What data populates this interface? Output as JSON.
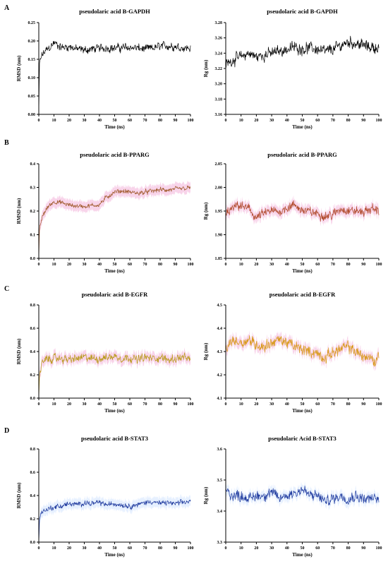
{
  "panels": [
    {
      "letter": "A"
    },
    {
      "letter": "B"
    },
    {
      "letter": "C"
    },
    {
      "letter": "D"
    }
  ],
  "chart_data": [
    {
      "type": "line",
      "panel": "A",
      "title": "pseudolaric acid B-GAPDH",
      "xlabel": "Time (ns)",
      "ylabel": "RMSD (nm)",
      "xlim": [
        0,
        100
      ],
      "ylim": [
        0.0,
        0.25
      ],
      "xticks": [
        "0",
        "10",
        "20",
        "30",
        "40",
        "50",
        "60",
        "70",
        "80",
        "90",
        "100"
      ],
      "yticks": [
        "0.00",
        "0.05",
        "0.10",
        "0.15",
        "0.20",
        "0.25"
      ],
      "grid": false,
      "line_color": "#000000",
      "shade_color": "",
      "series": [
        {
          "x": [
            0,
            0.5,
            2,
            5,
            8,
            10,
            15,
            20,
            25,
            30,
            35,
            40,
            45,
            50,
            55,
            60,
            65,
            70,
            75,
            80,
            85,
            90,
            95,
            100
          ],
          "values": [
            0.0,
            0.14,
            0.16,
            0.175,
            0.185,
            0.195,
            0.182,
            0.185,
            0.178,
            0.175,
            0.178,
            0.18,
            0.182,
            0.18,
            0.182,
            0.183,
            0.18,
            0.178,
            0.18,
            0.185,
            0.187,
            0.185,
            0.182,
            0.18
          ],
          "noise": 0.009
        }
      ]
    },
    {
      "type": "line",
      "panel": "A",
      "title": "pseudolaric acid B-GAPDH",
      "xlabel": "Time (ns)",
      "ylabel": "Rg (nm)",
      "xlim": [
        0,
        100
      ],
      "ylim": [
        3.16,
        3.28
      ],
      "xticks": [
        "0",
        "10",
        "20",
        "30",
        "40",
        "50",
        "60",
        "70",
        "80",
        "90",
        "100"
      ],
      "yticks": [
        "3.16",
        "3.18",
        "3.20",
        "3.22",
        "3.24",
        "3.26",
        "3.28"
      ],
      "grid": false,
      "line_color": "#000000",
      "shade_color": "",
      "series": [
        {
          "x": [
            0,
            2,
            5,
            10,
            15,
            20,
            25,
            30,
            35,
            40,
            45,
            50,
            55,
            60,
            65,
            70,
            75,
            80,
            85,
            90,
            95,
            100
          ],
          "values": [
            3.225,
            3.228,
            3.232,
            3.235,
            3.24,
            3.235,
            3.238,
            3.24,
            3.243,
            3.245,
            3.248,
            3.246,
            3.247,
            3.245,
            3.242,
            3.245,
            3.25,
            3.255,
            3.253,
            3.25,
            3.248,
            3.247
          ],
          "noise": 0.006
        }
      ]
    },
    {
      "type": "line",
      "panel": "B",
      "title": "pseudolaric acid B-PPARG",
      "xlabel": "Time (ns)",
      "ylabel": "RMSD (nm)",
      "xlim": [
        0,
        100
      ],
      "ylim": [
        0.0,
        0.4
      ],
      "xticks": [
        "0",
        "10",
        "20",
        "30",
        "40",
        "50",
        "60",
        "70",
        "80",
        "90",
        "100"
      ],
      "yticks": [
        "0.0",
        "0.1",
        "0.2",
        "0.3",
        "0.4"
      ],
      "grid": false,
      "line_color": "#a05a2c",
      "shade_color": "#f4b8dc",
      "series": [
        {
          "x": [
            0,
            0.5,
            2,
            5,
            8,
            10,
            15,
            20,
            25,
            30,
            35,
            40,
            45,
            50,
            55,
            60,
            65,
            70,
            75,
            80,
            85,
            90,
            95,
            100
          ],
          "values": [
            0.0,
            0.12,
            0.17,
            0.21,
            0.23,
            0.24,
            0.235,
            0.225,
            0.222,
            0.22,
            0.223,
            0.228,
            0.26,
            0.28,
            0.285,
            0.28,
            0.275,
            0.28,
            0.285,
            0.29,
            0.288,
            0.292,
            0.295,
            0.298
          ],
          "noise": 0.008
        }
      ]
    },
    {
      "type": "line",
      "panel": "B",
      "title": "pseudolaric acid B-PPARG",
      "xlabel": "Time (ns)",
      "ylabel": "Rg (nm)",
      "xlim": [
        0,
        100
      ],
      "ylim": [
        1.85,
        2.05
      ],
      "xticks": [
        "0",
        "10",
        "20",
        "30",
        "40",
        "50",
        "60",
        "70",
        "80",
        "90",
        "100"
      ],
      "yticks": [
        "1.85",
        "1.90",
        "1.95",
        "2.00",
        "2.05"
      ],
      "grid": false,
      "line_color": "#b04a2a",
      "shade_color": "#f4b8dc",
      "series": [
        {
          "x": [
            0,
            2,
            5,
            8,
            10,
            15,
            20,
            25,
            30,
            35,
            40,
            45,
            50,
            55,
            60,
            65,
            70,
            75,
            80,
            85,
            90,
            95,
            100
          ],
          "values": [
            1.94,
            1.95,
            1.955,
            1.962,
            1.96,
            1.955,
            1.935,
            1.945,
            1.95,
            1.948,
            1.958,
            1.962,
            1.952,
            1.948,
            1.945,
            1.94,
            1.942,
            1.955,
            1.952,
            1.95,
            1.948,
            1.955,
            1.952
          ],
          "noise": 0.008
        }
      ]
    },
    {
      "type": "line",
      "panel": "C",
      "title": "pseudolaric acid B-EGFR",
      "xlabel": "Time (ns)",
      "ylabel": "RMSD (nm)",
      "xlim": [
        0,
        100
      ],
      "ylim": [
        0.0,
        0.8
      ],
      "xticks": [
        "0",
        "10",
        "20",
        "30",
        "40",
        "50",
        "60",
        "70",
        "80",
        "90",
        "100"
      ],
      "yticks": [
        "0.0",
        "0.2",
        "0.4",
        "0.6",
        "0.8"
      ],
      "grid": false,
      "line_color": "#b89a1a",
      "shade_color": "#f4b8dc",
      "series": [
        {
          "x": [
            0,
            0.5,
            2,
            5,
            10,
            15,
            20,
            25,
            30,
            35,
            40,
            45,
            50,
            55,
            60,
            65,
            70,
            75,
            80,
            85,
            90,
            95,
            100
          ],
          "values": [
            0.0,
            0.2,
            0.3,
            0.33,
            0.34,
            0.34,
            0.33,
            0.34,
            0.35,
            0.34,
            0.34,
            0.35,
            0.36,
            0.34,
            0.35,
            0.33,
            0.35,
            0.34,
            0.35,
            0.33,
            0.34,
            0.35,
            0.33
          ],
          "noise": 0.028
        }
      ]
    },
    {
      "type": "line",
      "panel": "C",
      "title": "pseudolaric acid B-EGFR",
      "xlabel": "Time (ns)",
      "ylabel": "Rg (nm)",
      "xlim": [
        0,
        100
      ],
      "ylim": [
        4.1,
        4.5
      ],
      "xticks": [
        "0",
        "10",
        "20",
        "30",
        "40",
        "50",
        "60",
        "70",
        "80",
        "90",
        "100"
      ],
      "yticks": [
        "4.1",
        "4.2",
        "4.3",
        "4.4",
        "4.5"
      ],
      "grid": false,
      "line_color": "#d89a1a",
      "shade_color": "#f4b8dc",
      "series": [
        {
          "x": [
            0,
            2,
            5,
            10,
            15,
            20,
            25,
            30,
            35,
            40,
            45,
            50,
            55,
            60,
            65,
            70,
            75,
            80,
            85,
            90,
            95,
            98,
            100
          ],
          "values": [
            4.3,
            4.33,
            4.35,
            4.34,
            4.35,
            4.33,
            4.32,
            4.34,
            4.35,
            4.34,
            4.32,
            4.31,
            4.3,
            4.29,
            4.27,
            4.3,
            4.31,
            4.32,
            4.3,
            4.28,
            4.27,
            4.25,
            4.3
          ],
          "noise": 0.02
        }
      ]
    },
    {
      "type": "line",
      "panel": "D",
      "title": "pseudolaric acid B-STAT3",
      "xlabel": "Time (ns)",
      "ylabel": "RMSD (nm)",
      "xlim": [
        0,
        100
      ],
      "ylim": [
        0.0,
        0.8
      ],
      "xticks": [
        "0",
        "10",
        "20",
        "30",
        "40",
        "50",
        "60",
        "70",
        "80",
        "90",
        "100"
      ],
      "yticks": [
        "0.0",
        "0.2",
        "0.4",
        "0.6",
        "0.8"
      ],
      "grid": false,
      "line_color": "#1f3a9e",
      "shade_color": "#d6e6ff",
      "series": [
        {
          "x": [
            0,
            0.5,
            2,
            5,
            10,
            15,
            20,
            25,
            30,
            35,
            40,
            45,
            50,
            55,
            60,
            65,
            70,
            75,
            80,
            85,
            90,
            95,
            100
          ],
          "values": [
            0.0,
            0.2,
            0.26,
            0.28,
            0.3,
            0.31,
            0.33,
            0.32,
            0.34,
            0.33,
            0.34,
            0.32,
            0.33,
            0.32,
            0.31,
            0.32,
            0.34,
            0.35,
            0.33,
            0.34,
            0.33,
            0.34,
            0.35
          ],
          "noise": 0.018
        }
      ]
    },
    {
      "type": "line",
      "panel": "D",
      "title": "pseudolaric Acid B-STAT3",
      "xlabel": "Time (ns)",
      "ylabel": "Rg (nm)",
      "xlim": [
        0,
        100
      ],
      "ylim": [
        3.3,
        3.6
      ],
      "xticks": [
        "0",
        "10",
        "20",
        "30",
        "40",
        "50",
        "60",
        "70",
        "80",
        "90",
        "100"
      ],
      "yticks": [
        "3.3",
        "3.4",
        "3.5",
        "3.6"
      ],
      "grid": false,
      "line_color": "#1f3a9e",
      "shade_color": "#d6e6ff",
      "series": [
        {
          "x": [
            0,
            2,
            5,
            10,
            15,
            20,
            25,
            30,
            35,
            40,
            45,
            50,
            55,
            60,
            65,
            70,
            75,
            80,
            85,
            90,
            95,
            100
          ],
          "values": [
            3.47,
            3.46,
            3.45,
            3.45,
            3.44,
            3.45,
            3.45,
            3.46,
            3.44,
            3.45,
            3.46,
            3.47,
            3.45,
            3.45,
            3.43,
            3.44,
            3.45,
            3.44,
            3.45,
            3.44,
            3.44,
            3.44
          ],
          "noise": 0.014
        }
      ]
    }
  ]
}
